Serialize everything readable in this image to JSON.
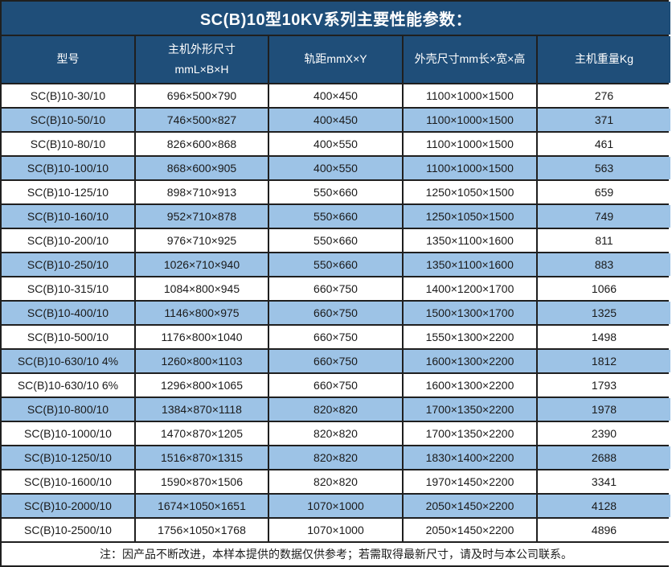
{
  "table": {
    "title": "SC(B)10型10KV系列主要性能参数：",
    "columns": [
      "型号",
      "主机外形尺寸\nmmL×B×H",
      "轨距mmX×Y",
      "外壳尺寸mm长×宽×高",
      "主机重量Kg"
    ],
    "rows": [
      {
        "model": "SC(B)10-30/10",
        "host_dimensions": "696×500×790",
        "rail_gauge": "400×450",
        "shell_dimensions": "1100×1000×1500",
        "weight_kg": "276"
      },
      {
        "model": "SC(B)10-50/10",
        "host_dimensions": "746×500×827",
        "rail_gauge": "400×450",
        "shell_dimensions": "1100×1000×1500",
        "weight_kg": "371"
      },
      {
        "model": "SC(B)10-80/10",
        "host_dimensions": "826×600×868",
        "rail_gauge": "400×550",
        "shell_dimensions": "1100×1000×1500",
        "weight_kg": "461"
      },
      {
        "model": "SC(B)10-100/10",
        "host_dimensions": "868×600×905",
        "rail_gauge": "400×550",
        "shell_dimensions": "1100×1000×1500",
        "weight_kg": "563"
      },
      {
        "model": "SC(B)10-125/10",
        "host_dimensions": "898×710×913",
        "rail_gauge": "550×660",
        "shell_dimensions": "1250×1050×1500",
        "weight_kg": "659"
      },
      {
        "model": "SC(B)10-160/10",
        "host_dimensions": "952×710×878",
        "rail_gauge": "550×660",
        "shell_dimensions": "1250×1050×1500",
        "weight_kg": "749"
      },
      {
        "model": "SC(B)10-200/10",
        "host_dimensions": "976×710×925",
        "rail_gauge": "550×660",
        "shell_dimensions": "1350×1100×1600",
        "weight_kg": "811"
      },
      {
        "model": "SC(B)10-250/10",
        "host_dimensions": "1026×710×940",
        "rail_gauge": "550×660",
        "shell_dimensions": "1350×1100×1600",
        "weight_kg": "883"
      },
      {
        "model": "SC(B)10-315/10",
        "host_dimensions": "1084×800×945",
        "rail_gauge": "660×750",
        "shell_dimensions": "1400×1200×1700",
        "weight_kg": "1066"
      },
      {
        "model": "SC(B)10-400/10",
        "host_dimensions": "1146×800×975",
        "rail_gauge": "660×750",
        "shell_dimensions": "1500×1300×1700",
        "weight_kg": "1325"
      },
      {
        "model": "SC(B)10-500/10",
        "host_dimensions": "1176×800×1040",
        "rail_gauge": "660×750",
        "shell_dimensions": "1550×1300×2200",
        "weight_kg": "1498"
      },
      {
        "model": "SC(B)10-630/10 4%",
        "host_dimensions": "1260×800×1103",
        "rail_gauge": "660×750",
        "shell_dimensions": "1600×1300×2200",
        "weight_kg": "1812"
      },
      {
        "model": "SC(B)10-630/10 6%",
        "host_dimensions": "1296×800×1065",
        "rail_gauge": "660×750",
        "shell_dimensions": "1600×1300×2200",
        "weight_kg": "1793"
      },
      {
        "model": "SC(B)10-800/10",
        "host_dimensions": "1384×870×1118",
        "rail_gauge": "820×820",
        "shell_dimensions": "1700×1350×2200",
        "weight_kg": "1978"
      },
      {
        "model": "SC(B)10-1000/10",
        "host_dimensions": "1470×870×1205",
        "rail_gauge": "820×820",
        "shell_dimensions": "1700×1350×2200",
        "weight_kg": "2390"
      },
      {
        "model": "SC(B)10-1250/10",
        "host_dimensions": "1516×870×1315",
        "rail_gauge": "820×820",
        "shell_dimensions": "1830×1400×2200",
        "weight_kg": "2688"
      },
      {
        "model": "SC(B)10-1600/10",
        "host_dimensions": "1590×870×1506",
        "rail_gauge": "820×820",
        "shell_dimensions": "1970×1450×2200",
        "weight_kg": "3341"
      },
      {
        "model": "SC(B)10-2000/10",
        "host_dimensions": "1674×1050×1651",
        "rail_gauge": "1070×1000",
        "shell_dimensions": "2050×1450×2200",
        "weight_kg": "4128"
      },
      {
        "model": "SC(B)10-2500/10",
        "host_dimensions": "1756×1050×1768",
        "rail_gauge": "1070×1000",
        "shell_dimensions": "2050×1450×2200",
        "weight_kg": "4896"
      }
    ],
    "note": "注：因产品不断改进，本样本提供的数据仅供参考；若需取得最新尺寸，请及时与本公司联系。"
  },
  "colors": {
    "header_bg": "#1F4E79",
    "row_alt_bg": "#9DC3E6",
    "row_bg": "#ffffff",
    "grid_line": "#1f1f1f",
    "header_text": "#ffffff",
    "body_text": "#1a1a1a"
  }
}
